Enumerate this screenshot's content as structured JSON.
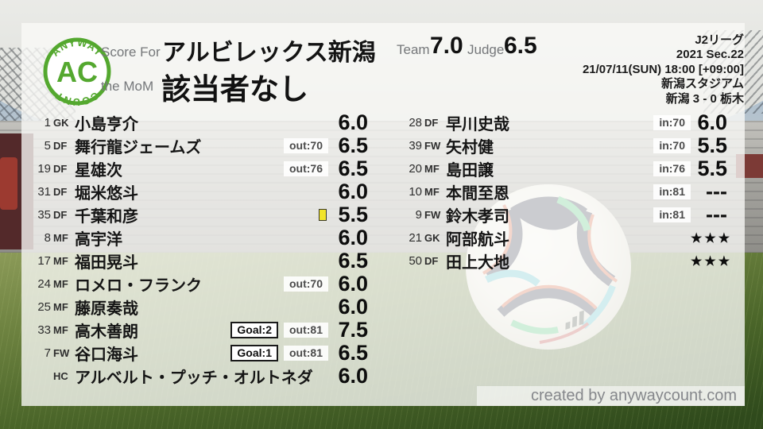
{
  "logo": {
    "arc_top": "ANYWAY",
    "center": "AC",
    "arc_bottom": "COUNT"
  },
  "header": {
    "score_for_label": "Score For",
    "team_name": "アルビレックス新潟",
    "mom_label": "the MoM",
    "mom_value": "該当者なし",
    "team_label": "Team",
    "team_score": "7.0",
    "judge_label": "Judge",
    "judge_score": "6.5"
  },
  "match_info": {
    "league": "J2リーグ",
    "season": "2021 Sec.22",
    "datetime": "21/07/11(SUN) 18:00 [+09:00]",
    "venue": "新潟スタジアム",
    "result": "新潟 3 - 0 栃木"
  },
  "left_players": [
    {
      "num": "1",
      "pos": "GK",
      "name": "小島亨介",
      "badges": [],
      "yellow_card": false,
      "rating": "6.0"
    },
    {
      "num": "5",
      "pos": "DF",
      "name": "舞行龍ジェームズ",
      "badges": [
        {
          "type": "sub",
          "label": "out:70"
        }
      ],
      "yellow_card": false,
      "rating": "6.5"
    },
    {
      "num": "19",
      "pos": "DF",
      "name": "星雄次",
      "badges": [
        {
          "type": "sub",
          "label": "out:76"
        }
      ],
      "yellow_card": false,
      "rating": "6.5"
    },
    {
      "num": "31",
      "pos": "DF",
      "name": "堀米悠斗",
      "badges": [],
      "yellow_card": false,
      "rating": "6.0"
    },
    {
      "num": "35",
      "pos": "DF",
      "name": "千葉和彦",
      "badges": [],
      "yellow_card": true,
      "rating": "5.5"
    },
    {
      "num": "8",
      "pos": "MF",
      "name": "高宇洋",
      "badges": [],
      "yellow_card": false,
      "rating": "6.0"
    },
    {
      "num": "17",
      "pos": "MF",
      "name": "福田晃斗",
      "badges": [],
      "yellow_card": false,
      "rating": "6.5"
    },
    {
      "num": "24",
      "pos": "MF",
      "name": "ロメロ・フランク",
      "badges": [
        {
          "type": "sub",
          "label": "out:70"
        }
      ],
      "yellow_card": false,
      "rating": "6.0"
    },
    {
      "num": "25",
      "pos": "MF",
      "name": "藤原奏哉",
      "badges": [],
      "yellow_card": false,
      "rating": "6.0"
    },
    {
      "num": "33",
      "pos": "MF",
      "name": "高木善朗",
      "badges": [
        {
          "type": "goal",
          "label": "Goal:2"
        },
        {
          "type": "sub",
          "label": "out:81"
        }
      ],
      "yellow_card": false,
      "rating": "7.5"
    },
    {
      "num": "7",
      "pos": "FW",
      "name": "谷口海斗",
      "badges": [
        {
          "type": "goal",
          "label": "Goal:1"
        },
        {
          "type": "sub",
          "label": "out:81"
        }
      ],
      "yellow_card": false,
      "rating": "6.5"
    },
    {
      "num": "",
      "pos": "HC",
      "name": "アルベルト・プッチ・オルトネダ",
      "badges": [],
      "yellow_card": false,
      "rating": "6.0"
    }
  ],
  "right_players": [
    {
      "num": "28",
      "pos": "DF",
      "name": "早川史哉",
      "badges": [
        {
          "type": "sub",
          "label": "in:70"
        }
      ],
      "yellow_card": false,
      "rating": "6.0"
    },
    {
      "num": "39",
      "pos": "FW",
      "name": "矢村健",
      "badges": [
        {
          "type": "sub",
          "label": "in:70"
        }
      ],
      "yellow_card": false,
      "rating": "5.5"
    },
    {
      "num": "20",
      "pos": "MF",
      "name": "島田譲",
      "badges": [
        {
          "type": "sub",
          "label": "in:76"
        }
      ],
      "yellow_card": false,
      "rating": "5.5"
    },
    {
      "num": "10",
      "pos": "MF",
      "name": "本間至恩",
      "badges": [
        {
          "type": "sub",
          "label": "in:81"
        }
      ],
      "yellow_card": false,
      "rating": "---"
    },
    {
      "num": "9",
      "pos": "FW",
      "name": "鈴木孝司",
      "badges": [
        {
          "type": "sub",
          "label": "in:81"
        }
      ],
      "yellow_card": false,
      "rating": "---"
    },
    {
      "num": "21",
      "pos": "GK",
      "name": "阿部航斗",
      "badges": [],
      "yellow_card": false,
      "rating": "★★★"
    },
    {
      "num": "50",
      "pos": "DF",
      "name": "田上大地",
      "badges": [],
      "yellow_card": false,
      "rating": "★★★"
    }
  ],
  "footer": {
    "credit": "created by anywaycount.com"
  },
  "colors": {
    "accent_green": "#54a82f",
    "yellow_card": "#f2e42b",
    "overlay": "rgba(250,250,247,0.78)"
  }
}
